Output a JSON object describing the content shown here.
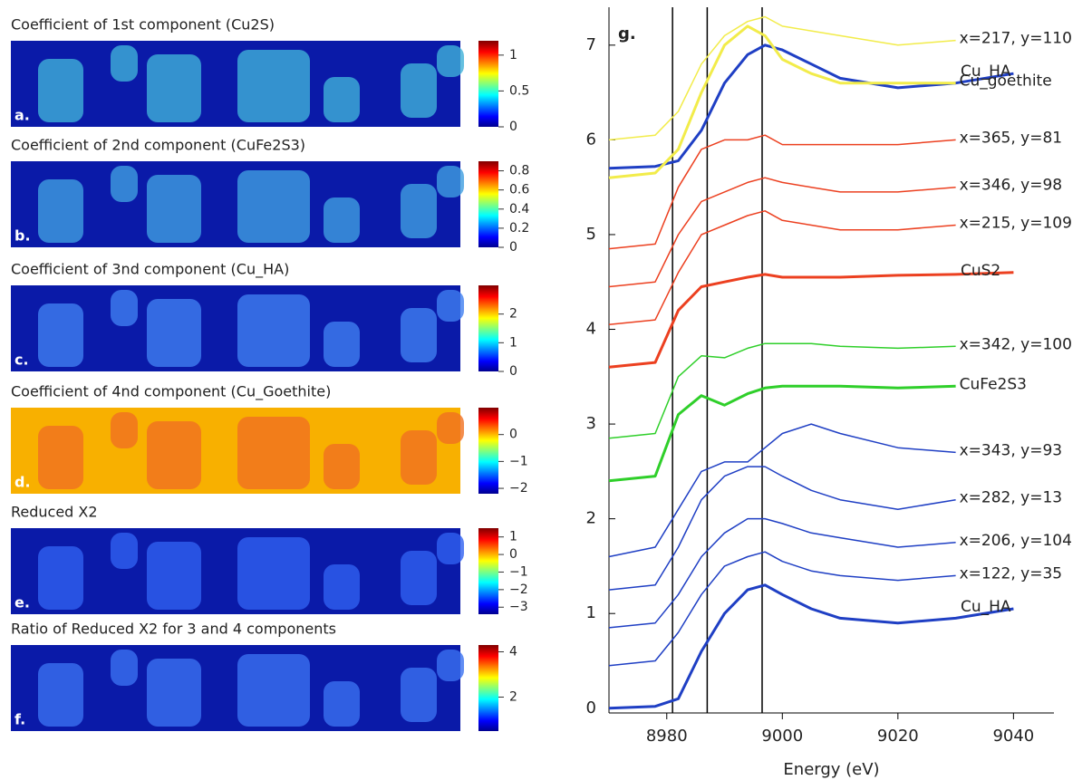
{
  "chart_data": [
    {
      "type": "heatmap",
      "title": "Coefficient of 1st component (Cu2S)",
      "label": "a.",
      "clim": [
        0,
        1.2
      ],
      "cticks": [
        0,
        0.5,
        1
      ]
    },
    {
      "type": "heatmap",
      "title": "Coefficient of 2nd component (CuFe2S3)",
      "label": "b.",
      "clim": [
        0,
        0.9
      ],
      "cticks": [
        0,
        0.2,
        0.4,
        0.6,
        0.8
      ]
    },
    {
      "type": "heatmap",
      "title": "Coefficient of 3nd component (Cu_HA)",
      "label": "c.",
      "clim": [
        0,
        3
      ],
      "cticks": [
        0,
        1,
        2
      ]
    },
    {
      "type": "heatmap",
      "title": "Coefficient of 4nd component (Cu_Goethite)",
      "label": "d.",
      "clim": [
        -2.2,
        1
      ],
      "cticks": [
        {
          "value": -2,
          "label": "−2"
        },
        {
          "value": -1,
          "label": "−1"
        },
        0
      ]
    },
    {
      "type": "heatmap",
      "title": "Reduced X2",
      "label": "e.",
      "clim": [
        -3.4,
        1.5
      ],
      "cticks": [
        {
          "value": -3,
          "label": "−3"
        },
        {
          "value": -2,
          "label": "−2"
        },
        {
          "value": -1,
          "label": "−1"
        },
        0,
        1
      ]
    },
    {
      "type": "heatmap",
      "title": "Ratio of Reduced X2 for 3 and 4 components",
      "label": "f.",
      "clim": [
        0.5,
        4.3
      ],
      "cticks": [
        2,
        4
      ]
    },
    {
      "type": "line",
      "label": "g.",
      "xlabel": "Energy (eV)",
      "xlim": [
        8970,
        9047
      ],
      "ylim": [
        -0.05,
        7.4
      ],
      "xticks": [
        8980,
        9000,
        9020,
        9040
      ],
      "yticks": [
        0,
        1,
        2,
        3,
        4,
        5,
        6,
        7
      ],
      "vlines": [
        8981,
        8987,
        8996.5
      ],
      "x": [
        8970,
        8978,
        8982,
        8986,
        8990,
        8994,
        8997,
        9000,
        9005,
        9010,
        9020,
        9030,
        9040,
        9050
      ],
      "series": [
        {
          "name": "x=217, y=110",
          "color": "#f2ec4a",
          "width": 1.5,
          "values": [
            6.0,
            6.05,
            6.3,
            6.8,
            7.1,
            7.25,
            7.3,
            7.2,
            7.15,
            7.1,
            7.0,
            7.05,
            null,
            null
          ]
        },
        {
          "name": "Cu_HA",
          "color": "#1f3fc4",
          "width": 3,
          "values": [
            5.7,
            5.72,
            5.78,
            6.1,
            6.6,
            6.9,
            7.0,
            6.95,
            6.8,
            6.65,
            6.55,
            6.6,
            6.7,
            null
          ]
        },
        {
          "name": "Cu_goethite",
          "color": "#f2ec4a",
          "width": 3,
          "values": [
            5.6,
            5.65,
            5.9,
            6.5,
            7.0,
            7.2,
            7.1,
            6.85,
            6.7,
            6.6,
            6.6,
            6.6,
            null,
            null
          ]
        },
        {
          "name": "x=365, y=81",
          "color": "#ec4020",
          "width": 1.5,
          "values": [
            4.85,
            4.9,
            5.5,
            5.9,
            6.0,
            6.0,
            6.05,
            5.95,
            5.95,
            5.95,
            5.95,
            6.0,
            null,
            null
          ]
        },
        {
          "name": "x=346, y=98",
          "color": "#ec4020",
          "width": 1.5,
          "values": [
            4.45,
            4.5,
            5.0,
            5.35,
            5.45,
            5.55,
            5.6,
            5.55,
            5.5,
            5.45,
            5.45,
            5.5,
            null,
            null
          ]
        },
        {
          "name": "x=215, y=109",
          "color": "#ec4020",
          "width": 1.5,
          "values": [
            4.05,
            4.1,
            4.6,
            5.0,
            5.1,
            5.2,
            5.25,
            5.15,
            5.1,
            5.05,
            5.05,
            5.1,
            null,
            null
          ]
        },
        {
          "name": "CuS2",
          "color": "#ec4020",
          "width": 3,
          "values": [
            3.6,
            3.65,
            4.2,
            4.45,
            4.5,
            4.55,
            4.58,
            4.55,
            4.55,
            4.55,
            4.57,
            4.58,
            4.6,
            null
          ]
        },
        {
          "name": "x=342, y=100",
          "color": "#2fcf2a",
          "width": 1.5,
          "values": [
            2.85,
            2.9,
            3.5,
            3.72,
            3.7,
            3.8,
            3.85,
            3.85,
            3.85,
            3.82,
            3.8,
            3.82,
            null,
            null
          ]
        },
        {
          "name": "CuFe2S3",
          "color": "#2fcf2a",
          "width": 3,
          "values": [
            2.4,
            2.45,
            3.1,
            3.3,
            3.2,
            3.32,
            3.38,
            3.4,
            3.4,
            3.4,
            3.38,
            3.4,
            null,
            null
          ]
        },
        {
          "name": "x=343, y=93",
          "color": "#1f3fc4",
          "width": 1.5,
          "values": [
            1.6,
            1.7,
            2.1,
            2.5,
            2.6,
            2.6,
            2.75,
            2.9,
            3.0,
            2.9,
            2.75,
            2.7,
            null,
            null
          ]
        },
        {
          "name": "x=282, y=13",
          "color": "#1f3fc4",
          "width": 1.5,
          "values": [
            1.25,
            1.3,
            1.7,
            2.2,
            2.45,
            2.55,
            2.55,
            2.45,
            2.3,
            2.2,
            2.1,
            2.2,
            null,
            null
          ]
        },
        {
          "name": "x=206, y=104",
          "color": "#1f3fc4",
          "width": 1.5,
          "values": [
            0.85,
            0.9,
            1.2,
            1.6,
            1.85,
            2.0,
            2.0,
            1.95,
            1.85,
            1.8,
            1.7,
            1.75,
            null,
            null
          ]
        },
        {
          "name": "x=122, y=35",
          "color": "#1f3fc4",
          "width": 1.5,
          "values": [
            0.45,
            0.5,
            0.8,
            1.2,
            1.5,
            1.6,
            1.65,
            1.55,
            1.45,
            1.4,
            1.35,
            1.4,
            null,
            null
          ]
        },
        {
          "name": "Cu_HA",
          "color": "#1f3fc4",
          "width": 3,
          "values": [
            0.0,
            0.02,
            0.1,
            0.6,
            1.0,
            1.25,
            1.3,
            1.2,
            1.05,
            0.95,
            0.9,
            0.95,
            1.05,
            null
          ]
        }
      ]
    }
  ]
}
